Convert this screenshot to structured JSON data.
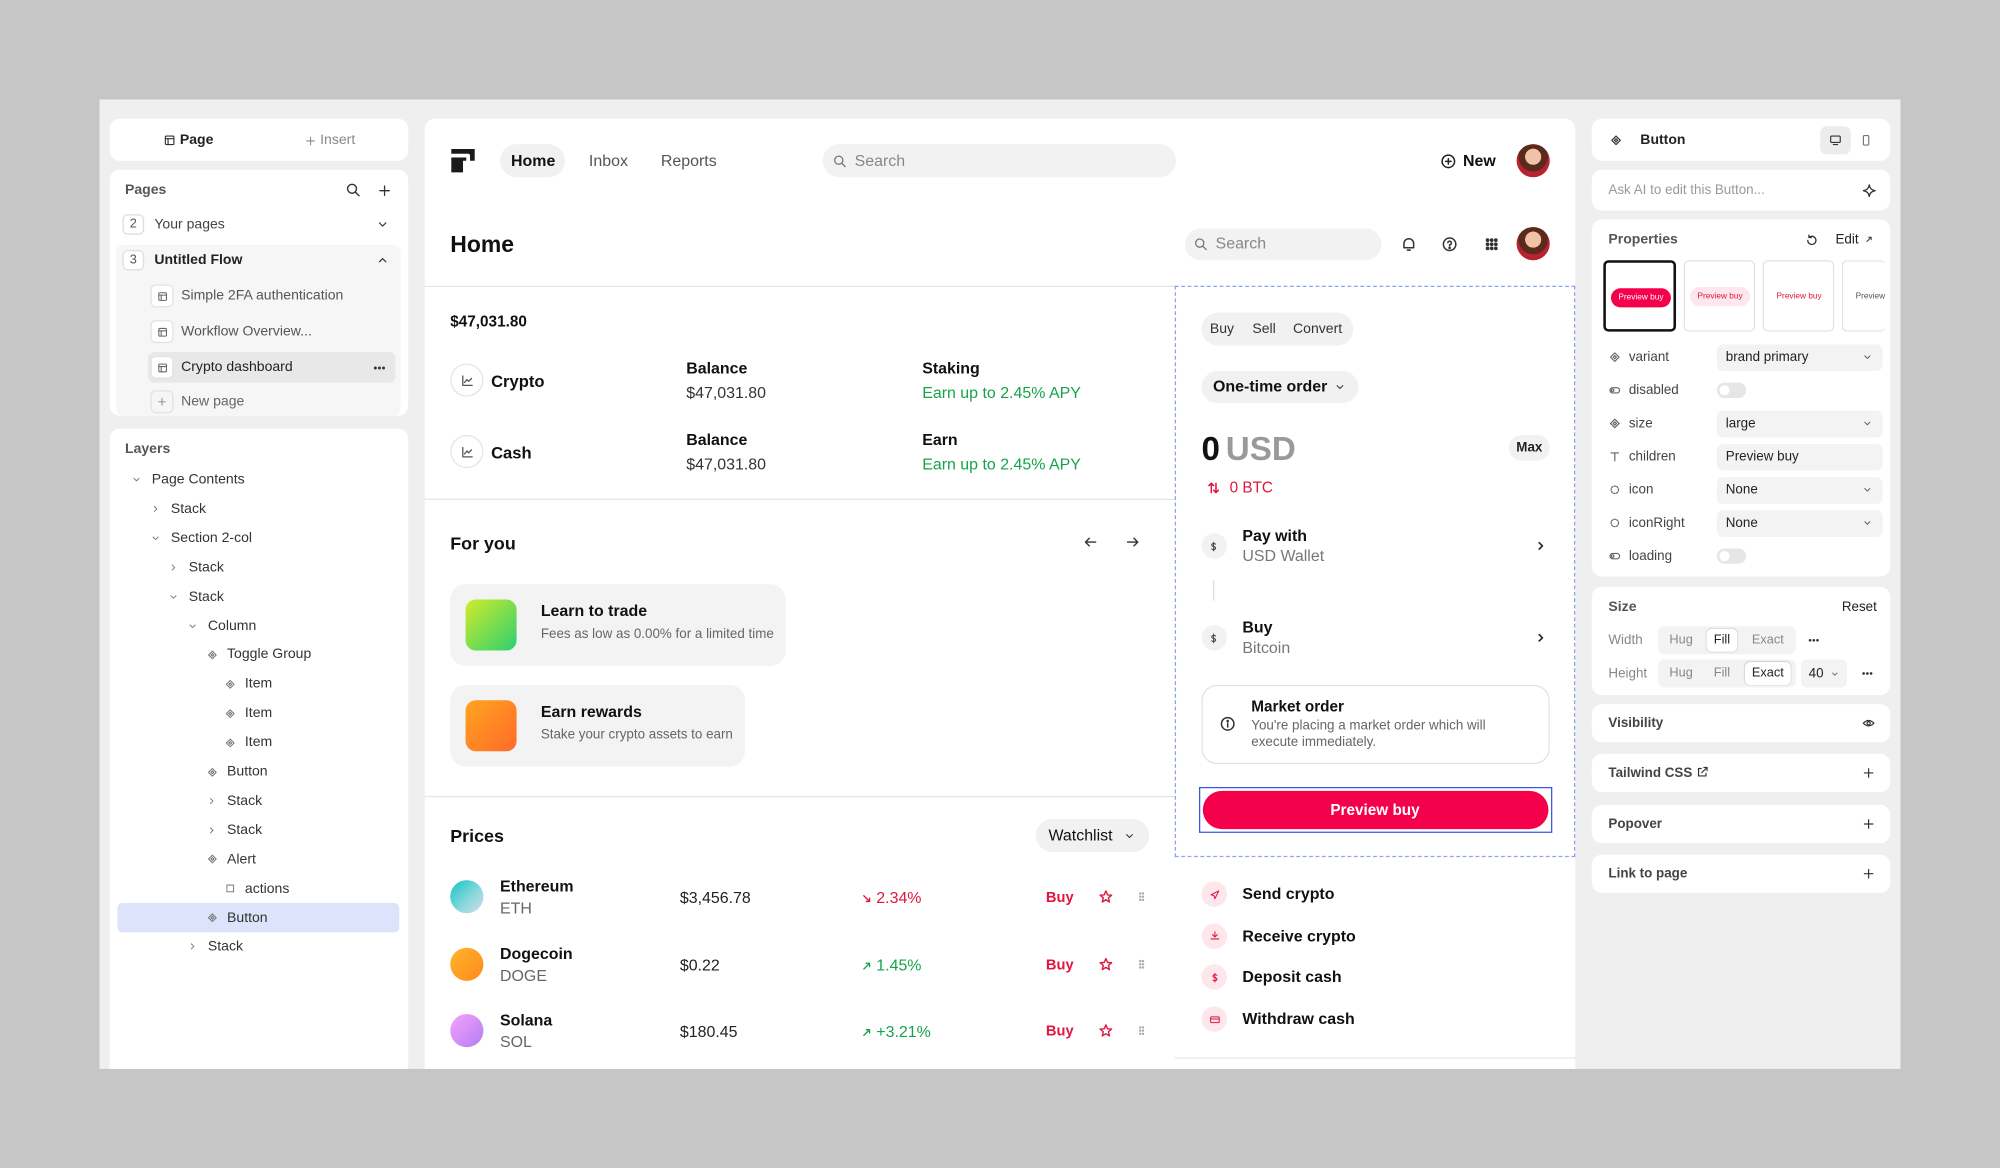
{
  "left_panel": {
    "tabs": [
      "Page",
      "Insert"
    ],
    "pages_title": "Pages",
    "pages": [
      {
        "num": "2",
        "label": "Your pages"
      },
      {
        "num": "3",
        "label": "Untitled Flow"
      }
    ],
    "flow_pages": [
      "Simple 2FA authentication",
      "Workflow Overview...",
      "Crypto dashboard"
    ],
    "new_page": "New page",
    "layers_title": "Layers",
    "layers": [
      "Page Contents",
      "Stack",
      "Section 2-col",
      "Stack",
      "Stack",
      "Column",
      "Toggle Group",
      "Item",
      "Item",
      "Item",
      "Button",
      "Stack",
      "Stack",
      "Alert",
      "actions",
      "Button",
      "Stack"
    ]
  },
  "top_nav": {
    "links": [
      "Home",
      "Inbox",
      "Reports"
    ],
    "search": "Search",
    "new": "New"
  },
  "dashboard": {
    "title": "Home",
    "search": "Search",
    "total": "$47,031.80",
    "accounts": [
      {
        "name": "Crypto",
        "balance_label": "Balance",
        "balance": "$47,031.80",
        "extra_label": "Staking",
        "extra": "Earn up to 2.45% APY"
      },
      {
        "name": "Cash",
        "balance_label": "Balance",
        "balance": "$47,031.80",
        "extra_label": "Earn",
        "extra": "Earn up to 2.45% APY"
      }
    ],
    "for_you": {
      "title": "For you",
      "cards": [
        {
          "title": "Learn to trade",
          "subtitle": "Fees as low as 0.00% for a limited time"
        },
        {
          "title": "Earn rewards",
          "subtitle": "Stake your crypto assets to earn"
        }
      ]
    },
    "prices": {
      "title": "Prices",
      "filter": "Watchlist",
      "rows": [
        {
          "name": "Ethereum",
          "symbol": "ETH",
          "price": "$3,456.78",
          "change": "2.34%",
          "action": "Buy"
        },
        {
          "name": "Dogecoin",
          "symbol": "DOGE",
          "price": "$0.22",
          "change": "1.45%",
          "action": "Buy"
        },
        {
          "name": "Solana",
          "symbol": "SOL",
          "price": "$180.45",
          "change": "+3.21%",
          "action": "Buy"
        }
      ]
    }
  },
  "trade": {
    "tabs": [
      "Buy",
      "Sell",
      "Convert"
    ],
    "order_type": "One-time order",
    "amount": "0",
    "currency": "USD",
    "max": "Max",
    "btc": "0 BTC",
    "pay": {
      "label": "Pay with",
      "value": "USD Wallet"
    },
    "buy": {
      "label": "Buy",
      "value": "Bitcoin"
    },
    "alert": {
      "title": "Market order",
      "text": "You're placing a market order which will execute immediately."
    },
    "button": "Preview buy",
    "actions": [
      "Send crypto",
      "Receive crypto",
      "Deposit cash",
      "Withdraw cash"
    ]
  },
  "inspector": {
    "title": "Button",
    "ai_placeholder": "Ask AI to edit this Button...",
    "properties_title": "Properties",
    "edit": "Edit",
    "props": [
      {
        "label": "variant",
        "value": "brand primary"
      },
      {
        "label": "disabled"
      },
      {
        "label": "size",
        "value": "large"
      },
      {
        "label": "children",
        "value": "Preview buy"
      },
      {
        "label": "icon",
        "value": "None"
      },
      {
        "label": "iconRight",
        "value": "None"
      },
      {
        "label": "loading"
      }
    ],
    "size": {
      "title": "Size",
      "reset": "Reset",
      "rows": [
        {
          "label": "Width",
          "options": [
            "Hug",
            "Fill",
            "Exact"
          ]
        },
        {
          "label": "Height",
          "options": [
            "Hug",
            "Fill",
            "Exact"
          ],
          "value": "40"
        }
      ]
    },
    "sections": [
      "Visibility",
      "Tailwind CSS",
      "Popover",
      "Link to page"
    ]
  }
}
